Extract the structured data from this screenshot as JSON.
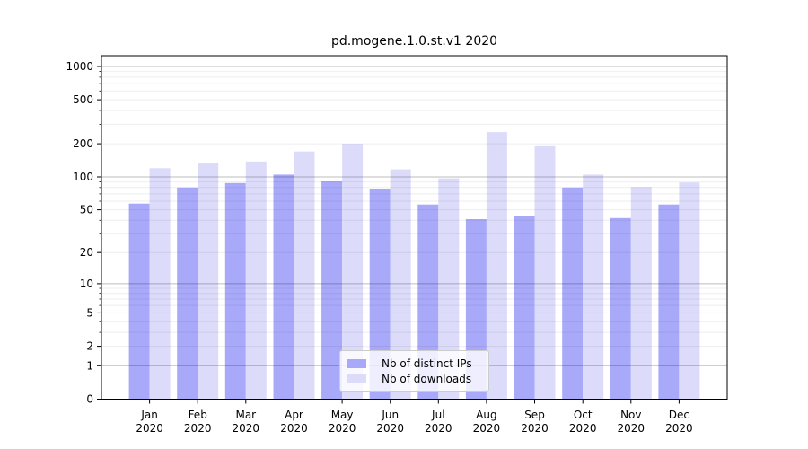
{
  "figure": {
    "background": "#ffffff"
  },
  "chart_data": {
    "type": "bar",
    "title": "pd.mogene.1.0.st.v1 2020",
    "categories": [
      "Jan",
      "Feb",
      "Mar",
      "Apr",
      "May",
      "Jun",
      "Jul",
      "Aug",
      "Sep",
      "Oct",
      "Nov",
      "Dec"
    ],
    "x_tick_second_line": "2020",
    "series": [
      {
        "name": "Nb of distinct IPs",
        "color": "#a9a9fa",
        "values": [
          57,
          80,
          88,
          105,
          91,
          78,
          56,
          41,
          44,
          80,
          42,
          56
        ]
      },
      {
        "name": "Nb of downloads",
        "color": "#dcdcfa",
        "values": [
          120,
          133,
          138,
          170,
          200,
          117,
          97,
          255,
          190,
          105,
          81,
          89
        ]
      }
    ],
    "yscale": "log1p",
    "ylim": [
      0,
      1250
    ],
    "yticks": [
      1000,
      500,
      200,
      100,
      50,
      20,
      10,
      5,
      2,
      1,
      0
    ],
    "grid": "both",
    "grid_major_values": [
      1,
      10,
      100,
      1000
    ],
    "grid_minor_values": [
      2,
      3,
      4,
      5,
      6,
      7,
      8,
      9,
      20,
      30,
      40,
      50,
      60,
      70,
      80,
      90,
      200,
      300,
      400,
      500,
      600,
      700,
      800,
      900
    ],
    "legend_position": "lower center"
  },
  "colors": {
    "axis": "#000000",
    "grid_minor": "rgba(0,0,0,0.07)",
    "grid_major": "rgba(0,0,0,0.26)",
    "legend_border": "#cccccc",
    "legend_bg": "rgba(255,255,255,0.8)"
  }
}
